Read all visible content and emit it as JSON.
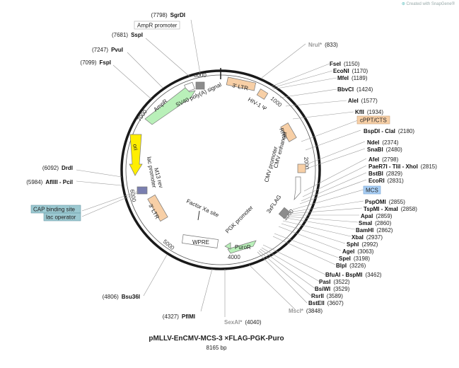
{
  "credit": "Created with SnapGene®",
  "title": "pMLLV-EnCMV-MCS-3 ×FLAG-PGK-Puro",
  "size_label": "8165 bp",
  "ticks": [
    "8000",
    "1000",
    "2000",
    "3000",
    "4000",
    "5000",
    "6000",
    "7000"
  ],
  "sites": [
    {
      "name": "SgrDI",
      "pos": "(7798)"
    },
    {
      "name": "SspI",
      "pos": "(7681)"
    },
    {
      "name": "PvuI",
      "pos": "(7247)"
    },
    {
      "name": "FspI",
      "pos": "(7099)"
    },
    {
      "name": "DrdI",
      "pos": "(6092)"
    },
    {
      "name": "AflIII - PciI",
      "pos": "(5984)"
    },
    {
      "name": "Bsu36I",
      "pos": "(4806)"
    },
    {
      "name": "PflMI",
      "pos": "(4327)"
    },
    {
      "name": "SexAI*",
      "pos": "(4040)"
    },
    {
      "name": "MscI*",
      "pos": "(3848)"
    },
    {
      "name": "NruI*",
      "pos": "(833)"
    },
    {
      "name": "FseI",
      "pos": "(1150)"
    },
    {
      "name": "EcoNI",
      "pos": "(1170)"
    },
    {
      "name": "MfeI",
      "pos": "(1189)"
    },
    {
      "name": "BbvCI",
      "pos": "(1424)"
    },
    {
      "name": "AleI",
      "pos": "(1577)"
    },
    {
      "name": "KflI",
      "pos": "(1934)"
    },
    {
      "name": "BspDI - ClaI",
      "pos": "(2180)"
    },
    {
      "name": "NdeI",
      "pos": "(2374)"
    },
    {
      "name": "SnaBI",
      "pos": "(2480)"
    },
    {
      "name": "AfeI",
      "pos": "(2798)"
    },
    {
      "name": "PaeR7I - TliI - XhoI",
      "pos": "(2815)"
    },
    {
      "name": "BstBI",
      "pos": "(2829)"
    },
    {
      "name": "EcoRI",
      "pos": "(2831)"
    },
    {
      "name": "PspOMI",
      "pos": "(2855)"
    },
    {
      "name": "TspMI - XmaI",
      "pos": "(2858)"
    },
    {
      "name": "ApaI",
      "pos": "(2859)"
    },
    {
      "name": "SmaI",
      "pos": "(2860)"
    },
    {
      "name": "BamHI",
      "pos": "(2862)"
    },
    {
      "name": "XbaI",
      "pos": "(2937)"
    },
    {
      "name": "SphI",
      "pos": "(2992)"
    },
    {
      "name": "AgeI",
      "pos": "(3063)"
    },
    {
      "name": "SpeI",
      "pos": "(3198)"
    },
    {
      "name": "BlpI",
      "pos": "(3226)"
    },
    {
      "name": "BfuAI - BspMI",
      "pos": "(3462)"
    },
    {
      "name": "PasI",
      "pos": "(3522)"
    },
    {
      "name": "BsiWI",
      "pos": "(3529)"
    },
    {
      "name": "RsrII",
      "pos": "(3589)"
    },
    {
      "name": "BstEII",
      "pos": "(3607)"
    }
  ],
  "boxed_labels": [
    "AmpR promoter",
    "cPPT/CTS",
    "MCS",
    "CAP binding site",
    "lac operator"
  ],
  "features": [
    "3' LTR",
    "HIV-1 Ψ",
    "RRE",
    "CMV enhancer",
    "CMV promoter",
    "3xFLAG",
    "PGK promoter",
    "PuroR",
    "WPRE",
    "Factor Xa site",
    "3' LTR",
    "M13 rev",
    "lac promoter",
    "ori",
    "AmpR",
    "SV40 poly(A) signal"
  ],
  "colors": {
    "ltr": "#f7cfa6",
    "ampr": "#b9f0b9",
    "ori": "#ffee00",
    "puro": "#b9f0b9",
    "mcs_box": "#a9cff5",
    "cap_box": "#9cc9d1",
    "grey_feature": "#8c8c8c"
  }
}
